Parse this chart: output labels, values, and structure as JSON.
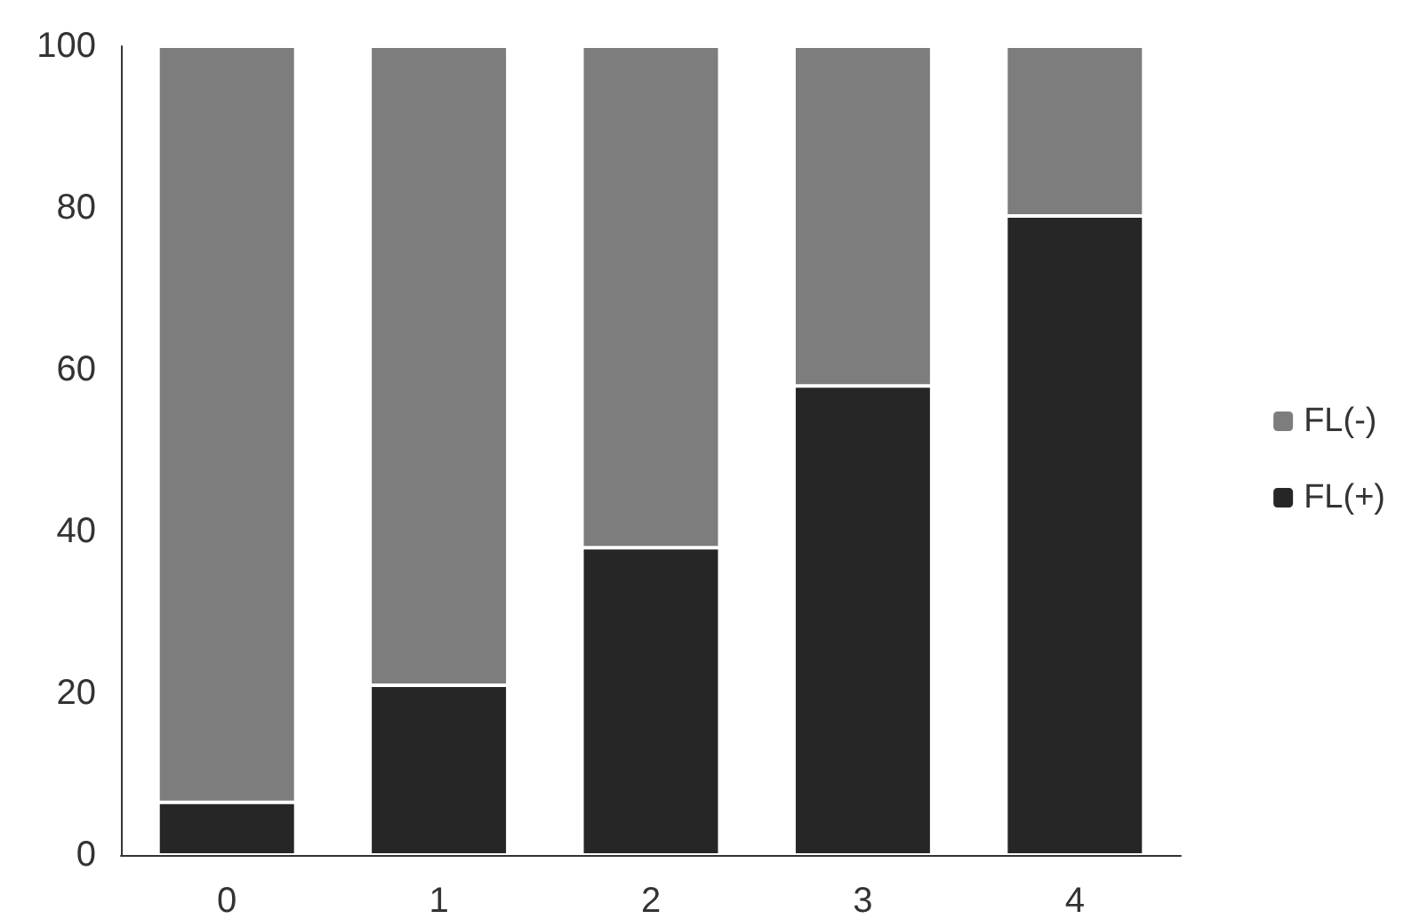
{
  "chart_data": {
    "type": "bar",
    "stacked": true,
    "categories": [
      "0",
      "1",
      "2",
      "3",
      "4"
    ],
    "series": [
      {
        "name": "FL(+)",
        "color": "#262626",
        "values": [
          6.5,
          21,
          38,
          58,
          79
        ]
      },
      {
        "name": "FL(-)",
        "color": "#7d7d7d",
        "values": [
          93.5,
          79,
          62,
          42,
          21
        ]
      }
    ],
    "ylim": [
      0,
      100
    ],
    "yticks": [
      0,
      20,
      40,
      60,
      80,
      100
    ],
    "grid": false,
    "legend": "right"
  }
}
